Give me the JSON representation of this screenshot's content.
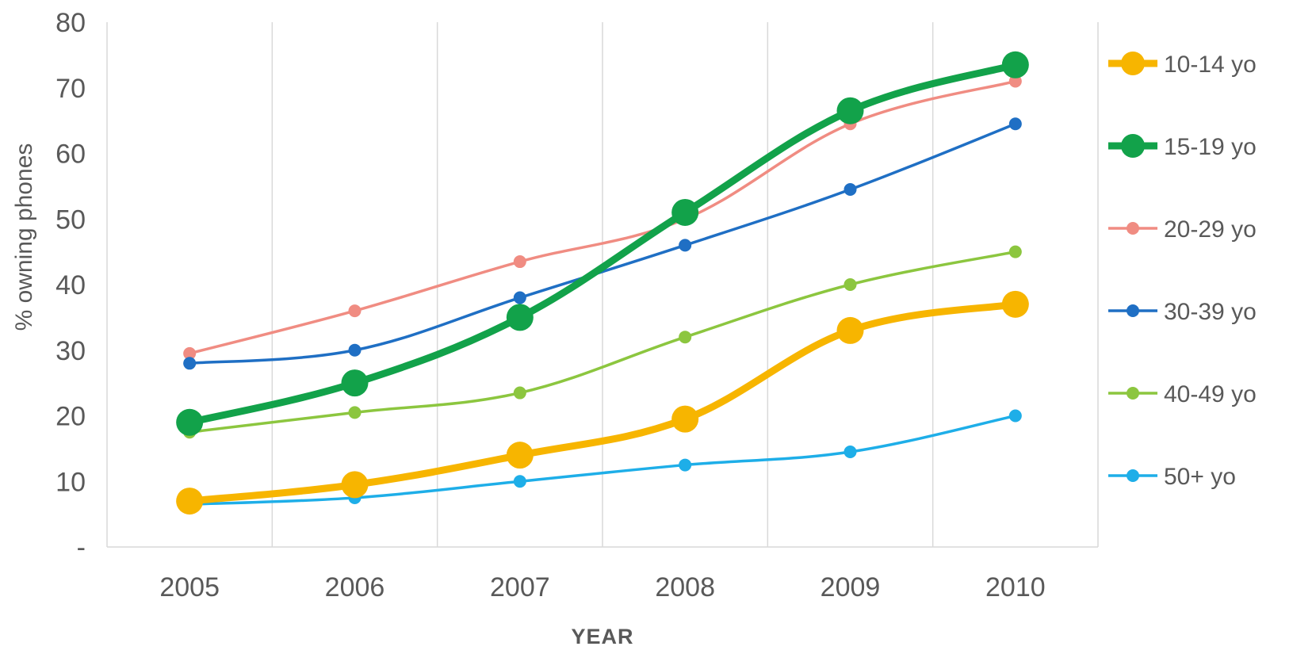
{
  "chart_data": {
    "type": "line",
    "xlabel": "YEAR",
    "ylabel": "% owning phones",
    "categories": [
      "2005",
      "2006",
      "2007",
      "2008",
      "2009",
      "2010"
    ],
    "ylim": [
      0,
      80
    ],
    "y_ticks": [
      {
        "value": 0,
        "label": "-"
      },
      {
        "value": 10,
        "label": "10"
      },
      {
        "value": 20,
        "label": "20"
      },
      {
        "value": 30,
        "label": "30"
      },
      {
        "value": 40,
        "label": "40"
      },
      {
        "value": 50,
        "label": "50"
      },
      {
        "value": 60,
        "label": "60"
      },
      {
        "value": 70,
        "label": "70"
      },
      {
        "value": 80,
        "label": "80"
      }
    ],
    "grid": "vertical",
    "legend_position": "right",
    "series": [
      {
        "name": "10-14 yo",
        "color": "#f7b500",
        "emphasis": "bold",
        "values": [
          7,
          9.5,
          14,
          19.5,
          33,
          37
        ]
      },
      {
        "name": "15-19 yo",
        "color": "#12a24a",
        "emphasis": "bold",
        "values": [
          19,
          25,
          35,
          51,
          66.5,
          73.5
        ]
      },
      {
        "name": "20-29 yo",
        "color": "#f08c82",
        "emphasis": "normal",
        "values": [
          29.5,
          36,
          43.5,
          50,
          64.5,
          71
        ]
      },
      {
        "name": "30-39 yo",
        "color": "#1f6fc4",
        "emphasis": "normal",
        "values": [
          28,
          30,
          38,
          46,
          54.5,
          64.5
        ]
      },
      {
        "name": "40-49 yo",
        "color": "#8cc63f",
        "emphasis": "normal",
        "values": [
          17.5,
          20.5,
          23.5,
          32,
          40,
          45
        ]
      },
      {
        "name": "50+ yo",
        "color": "#1eaee8",
        "emphasis": "normal",
        "values": [
          6.5,
          7.5,
          10,
          12.5,
          14.5,
          20
        ]
      }
    ]
  }
}
